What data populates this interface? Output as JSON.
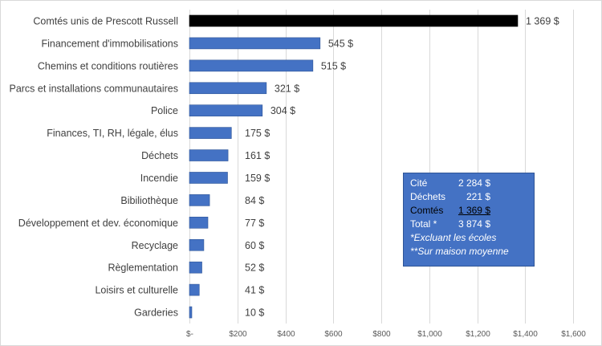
{
  "chart_data": {
    "type": "bar",
    "orientation": "horizontal",
    "categories": [
      "Comtés unis de Prescott Russell",
      "Financement d'immobilisations",
      "Chemins et conditions routières",
      "Parcs et installations communautaires",
      "Police",
      "Finances, TI, RH, légale, élus",
      "Déchets",
      "Incendie",
      "Bibiliothèque",
      "Développement et dev. économique",
      "Recyclage",
      "Règlementation",
      "Loisirs et culturelle",
      "Garderies"
    ],
    "values": [
      1369,
      545,
      515,
      321,
      304,
      175,
      161,
      159,
      84,
      77,
      60,
      52,
      41,
      10
    ],
    "data_labels": [
      "1 369 $",
      "545 $",
      "515 $",
      "321 $",
      "304 $",
      "175 $",
      "161 $",
      "159 $",
      "84 $",
      "77 $",
      "60 $",
      "52 $",
      "41 $",
      "10 $"
    ],
    "bar_colors": [
      "#000000",
      "#4472c4",
      "#4472c4",
      "#4472c4",
      "#4472c4",
      "#4472c4",
      "#4472c4",
      "#4472c4",
      "#4472c4",
      "#4472c4",
      "#4472c4",
      "#4472c4",
      "#4472c4",
      "#4472c4"
    ],
    "xlim": [
      0,
      1600
    ],
    "x_ticks": [
      0,
      200,
      400,
      600,
      800,
      1000,
      1200,
      1400,
      1600
    ],
    "x_tick_labels": [
      "$-",
      "$200",
      "$400",
      "$600",
      "$800",
      "$1,000",
      "$1,200",
      "$1,400",
      "$1,600"
    ],
    "grid": "vertical",
    "title": "",
    "xlabel": "",
    "ylabel": "",
    "legend": "none"
  },
  "info_box": {
    "rows": [
      {
        "name": "Cité",
        "value": "2 284 $"
      },
      {
        "name": "Déchets",
        "value": "221 $"
      },
      {
        "name": "Comtés",
        "value": "1 369 $"
      },
      {
        "name": "Total *",
        "value": "3 874 $"
      }
    ],
    "note1": "*Excluant les écoles",
    "note2": "**Sur maison moyenne",
    "background_color": "#4472c4"
  }
}
